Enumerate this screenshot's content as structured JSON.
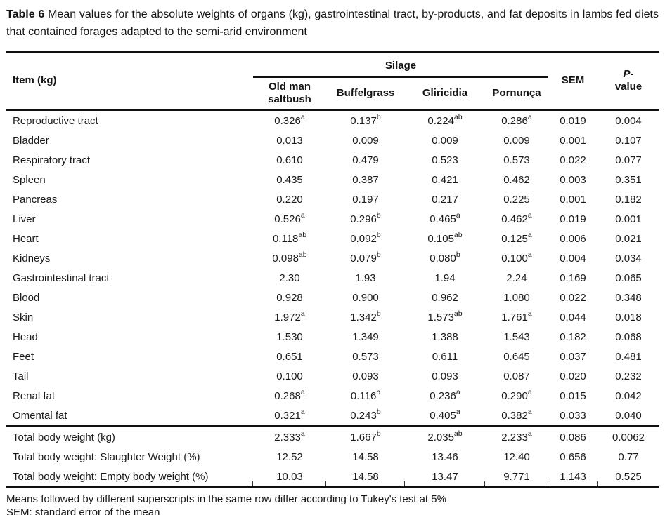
{
  "title": {
    "tag": "Table 6",
    "text": " Mean values for the absolute weights of organs (kg), gastrointestinal tract, by-products, and fat deposits in lambs fed diets that contained forages adapted to the semi-arid environment"
  },
  "table": {
    "item_header": "Item (kg)",
    "group_header": "Silage",
    "silage_columns": [
      "Old man saltbush",
      "Buffelgrass",
      "Gliricidia",
      "Pornunça"
    ],
    "sem_header": "SEM",
    "p_header": {
      "italic": "P",
      "hyphen": "-",
      "line2": "value"
    },
    "rows": [
      {
        "item": "Reproductive tract",
        "values": [
          {
            "v": "0.326",
            "sup": "a"
          },
          {
            "v": "0.137",
            "sup": "b"
          },
          {
            "v": "0.224",
            "sup": "ab"
          },
          {
            "v": "0.286",
            "sup": "a"
          }
        ],
        "sem": "0.019",
        "p": "0.004"
      },
      {
        "item": "Bladder",
        "values": [
          {
            "v": "0.013",
            "sup": ""
          },
          {
            "v": "0.009",
            "sup": ""
          },
          {
            "v": "0.009",
            "sup": ""
          },
          {
            "v": "0.009",
            "sup": ""
          }
        ],
        "sem": "0.001",
        "p": "0.107"
      },
      {
        "item": "Respiratory tract",
        "values": [
          {
            "v": "0.610",
            "sup": ""
          },
          {
            "v": "0.479",
            "sup": ""
          },
          {
            "v": "0.523",
            "sup": ""
          },
          {
            "v": "0.573",
            "sup": ""
          }
        ],
        "sem": "0.022",
        "p": "0.077"
      },
      {
        "item": "Spleen",
        "values": [
          {
            "v": "0.435",
            "sup": ""
          },
          {
            "v": "0.387",
            "sup": ""
          },
          {
            "v": "0.421",
            "sup": ""
          },
          {
            "v": "0.462",
            "sup": ""
          }
        ],
        "sem": "0.003",
        "p": "0.351"
      },
      {
        "item": "Pancreas",
        "values": [
          {
            "v": "0.220",
            "sup": ""
          },
          {
            "v": "0.197",
            "sup": ""
          },
          {
            "v": "0.217",
            "sup": ""
          },
          {
            "v": "0.225",
            "sup": ""
          }
        ],
        "sem": "0.001",
        "p": "0.182"
      },
      {
        "item": "Liver",
        "values": [
          {
            "v": "0.526",
            "sup": "a"
          },
          {
            "v": "0.296",
            "sup": "b"
          },
          {
            "v": "0.465",
            "sup": "a"
          },
          {
            "v": "0.462",
            "sup": "a"
          }
        ],
        "sem": "0.019",
        "p": "0.001"
      },
      {
        "item": "Heart",
        "values": [
          {
            "v": "0.118",
            "sup": "ab"
          },
          {
            "v": "0.092",
            "sup": "b"
          },
          {
            "v": "0.105",
            "sup": "ab"
          },
          {
            "v": "0.125",
            "sup": "a"
          }
        ],
        "sem": "0.006",
        "p": "0.021"
      },
      {
        "item": "Kidneys",
        "values": [
          {
            "v": "0.098",
            "sup": "ab"
          },
          {
            "v": "0.079",
            "sup": "b"
          },
          {
            "v": "0.080",
            "sup": "b"
          },
          {
            "v": "0.100",
            "sup": "a"
          }
        ],
        "sem": "0.004",
        "p": "0.034"
      },
      {
        "item": "Gastrointestinal tract",
        "values": [
          {
            "v": "2.30",
            "sup": ""
          },
          {
            "v": "1.93",
            "sup": ""
          },
          {
            "v": "1.94",
            "sup": ""
          },
          {
            "v": "2.24",
            "sup": ""
          }
        ],
        "sem": "0.169",
        "p": "0.065"
      },
      {
        "item": "Blood",
        "values": [
          {
            "v": "0.928",
            "sup": ""
          },
          {
            "v": "0.900",
            "sup": ""
          },
          {
            "v": "0.962",
            "sup": ""
          },
          {
            "v": "1.080",
            "sup": ""
          }
        ],
        "sem": "0.022",
        "p": "0.348"
      },
      {
        "item": "Skin",
        "values": [
          {
            "v": "1.972",
            "sup": "a"
          },
          {
            "v": "1.342",
            "sup": "b"
          },
          {
            "v": "1.573",
            "sup": "ab"
          },
          {
            "v": "1.761",
            "sup": "a"
          }
        ],
        "sem": "0.044",
        "p": "0.018"
      },
      {
        "item": "Head",
        "values": [
          {
            "v": "1.530",
            "sup": ""
          },
          {
            "v": "1.349",
            "sup": ""
          },
          {
            "v": "1.388",
            "sup": ""
          },
          {
            "v": "1.543",
            "sup": ""
          }
        ],
        "sem": "0.182",
        "p": "0.068"
      },
      {
        "item": "Feet",
        "values": [
          {
            "v": "0.651",
            "sup": ""
          },
          {
            "v": "0.573",
            "sup": ""
          },
          {
            "v": "0.611",
            "sup": ""
          },
          {
            "v": "0.645",
            "sup": ""
          }
        ],
        "sem": "0.037",
        "p": "0.481"
      },
      {
        "item": "Tail",
        "values": [
          {
            "v": "0.100",
            "sup": ""
          },
          {
            "v": "0.093",
            "sup": ""
          },
          {
            "v": "0.093",
            "sup": ""
          },
          {
            "v": "0.087",
            "sup": ""
          }
        ],
        "sem": "0.020",
        "p": "0.232"
      },
      {
        "item": "Renal fat",
        "values": [
          {
            "v": "0.268",
            "sup": "a"
          },
          {
            "v": "0.116",
            "sup": "b"
          },
          {
            "v": "0.236",
            "sup": "a"
          },
          {
            "v": "0.290",
            "sup": "a"
          }
        ],
        "sem": "0.015",
        "p": "0.042"
      },
      {
        "item": "Omental fat",
        "values": [
          {
            "v": "0.321",
            "sup": "a"
          },
          {
            "v": "0.243",
            "sup": "b"
          },
          {
            "v": "0.405",
            "sup": "a"
          },
          {
            "v": "0.382",
            "sup": "a"
          }
        ],
        "sem": "0.033",
        "p": "0.040"
      }
    ],
    "total_rows": [
      {
        "item": "Total body weight (kg)",
        "values": [
          {
            "v": "2.333",
            "sup": "a"
          },
          {
            "v": "1.667",
            "sup": "b"
          },
          {
            "v": "2.035",
            "sup": "ab"
          },
          {
            "v": "2.233",
            "sup": "a"
          }
        ],
        "sem": "0.086",
        "p": "0.0062"
      },
      {
        "item": "Total body weight: Slaughter Weight (%)",
        "values": [
          {
            "v": "12.52",
            "sup": ""
          },
          {
            "v": "14.58",
            "sup": ""
          },
          {
            "v": "13.46",
            "sup": ""
          },
          {
            "v": "12.40",
            "sup": ""
          }
        ],
        "sem": "0.656",
        "p": "0.77"
      },
      {
        "item": "Total body weight: Empty body weight (%)",
        "values": [
          {
            "v": "10.03",
            "sup": ""
          },
          {
            "v": "14.58",
            "sup": ""
          },
          {
            "v": "13.47",
            "sup": ""
          },
          {
            "v": "9.771",
            "sup": ""
          }
        ],
        "sem": "1.143",
        "p": "0.525"
      }
    ]
  },
  "footnotes": [
    "Means followed by different superscripts in the same row differ according to Tukey's test at 5%",
    "SEM: standard error of the mean"
  ]
}
